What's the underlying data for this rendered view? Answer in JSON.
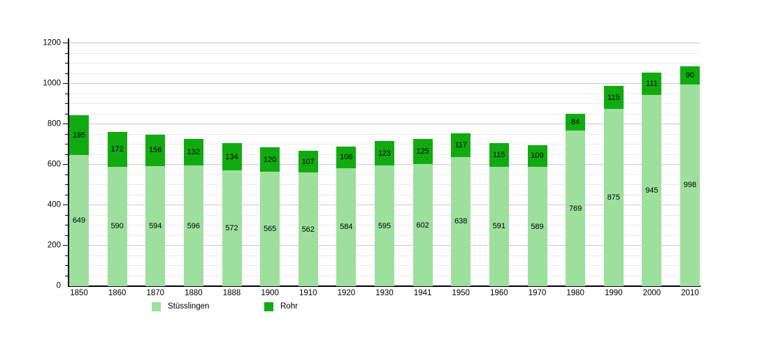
{
  "chart_data": {
    "type": "bar",
    "stacked": true,
    "title": "",
    "xlabel": "",
    "ylabel": "",
    "categories": [
      "1850",
      "1860",
      "1870",
      "1880",
      "1888",
      "1900",
      "1910",
      "1920",
      "1930",
      "1941",
      "1950",
      "1960",
      "1970",
      "1980",
      "1990",
      "2000",
      "2010"
    ],
    "series": [
      {
        "name": "Stüsslingen",
        "color": "#9ddf9d",
        "values": [
          649,
          590,
          594,
          596,
          572,
          565,
          562,
          584,
          595,
          602,
          638,
          591,
          589,
          769,
          875,
          945,
          998
        ]
      },
      {
        "name": "Rohr",
        "color": "#11ab11",
        "values": [
          195,
          172,
          156,
          132,
          134,
          120,
          107,
          106,
          123,
          125,
          117,
          115,
          109,
          84,
          115,
          111,
          90
        ]
      }
    ],
    "totals": [
      844,
      762,
      750,
      728,
      706,
      685,
      669,
      690,
      718,
      727,
      755,
      706,
      698,
      853,
      990,
      1056,
      1088
    ],
    "ylim": [
      0,
      1200
    ],
    "y_major_step": 200,
    "y_minor_step": 50,
    "y_tick_labels": [
      "0",
      "200",
      "400",
      "600",
      "800",
      "1000",
      "1200"
    ],
    "grid": true,
    "legend_position": "bottom",
    "colors": {
      "background": "#ffffff",
      "axis": "#000000",
      "grid_minor": "#eaeaea",
      "grid_major": "#c9c9c9",
      "value_label": "#000000"
    }
  }
}
